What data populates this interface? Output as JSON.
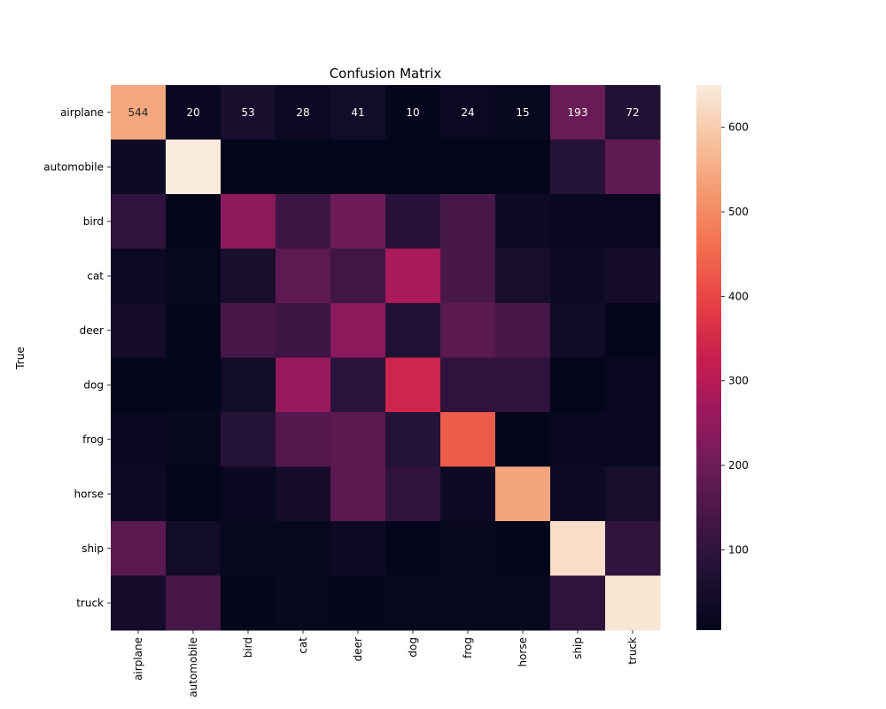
{
  "chart_data": {
    "type": "heatmap",
    "title": "Confusion Matrix",
    "xlabel": "",
    "ylabel": "True",
    "row_labels": [
      "airplane",
      "automobile",
      "bird",
      "cat",
      "deer",
      "dog",
      "frog",
      "horse",
      "ship",
      "truck"
    ],
    "col_labels": [
      "airplane",
      "automobile",
      "bird",
      "cat",
      "deer",
      "dog",
      "frog",
      "horse",
      "ship",
      "truck"
    ],
    "values": [
      [
        544,
        20,
        53,
        28,
        41,
        10,
        24,
        15,
        193,
        72
      ],
      [
        30,
        650,
        5,
        5,
        8,
        5,
        5,
        5,
        80,
        180
      ],
      [
        100,
        5,
        240,
        125,
        200,
        85,
        140,
        30,
        20,
        18
      ],
      [
        25,
        15,
        55,
        175,
        130,
        280,
        145,
        50,
        30,
        45
      ],
      [
        45,
        8,
        140,
        120,
        240,
        70,
        170,
        140,
        35,
        10
      ],
      [
        10,
        8,
        40,
        255,
        90,
        340,
        100,
        100,
        10,
        20
      ],
      [
        20,
        15,
        80,
        160,
        170,
        80,
        430,
        8,
        20,
        20
      ],
      [
        30,
        8,
        20,
        45,
        170,
        100,
        30,
        540,
        30,
        50
      ],
      [
        170,
        40,
        15,
        15,
        30,
        10,
        15,
        5,
        630,
        100
      ],
      [
        45,
        140,
        8,
        15,
        8,
        15,
        15,
        15,
        100,
        640
      ]
    ],
    "annotated_rows": [
      0
    ],
    "colorbar": {
      "min": 5,
      "max": 650,
      "ticks": [
        100,
        200,
        300,
        400,
        500,
        600
      ]
    },
    "colormap": "rocket",
    "grid": false
  }
}
